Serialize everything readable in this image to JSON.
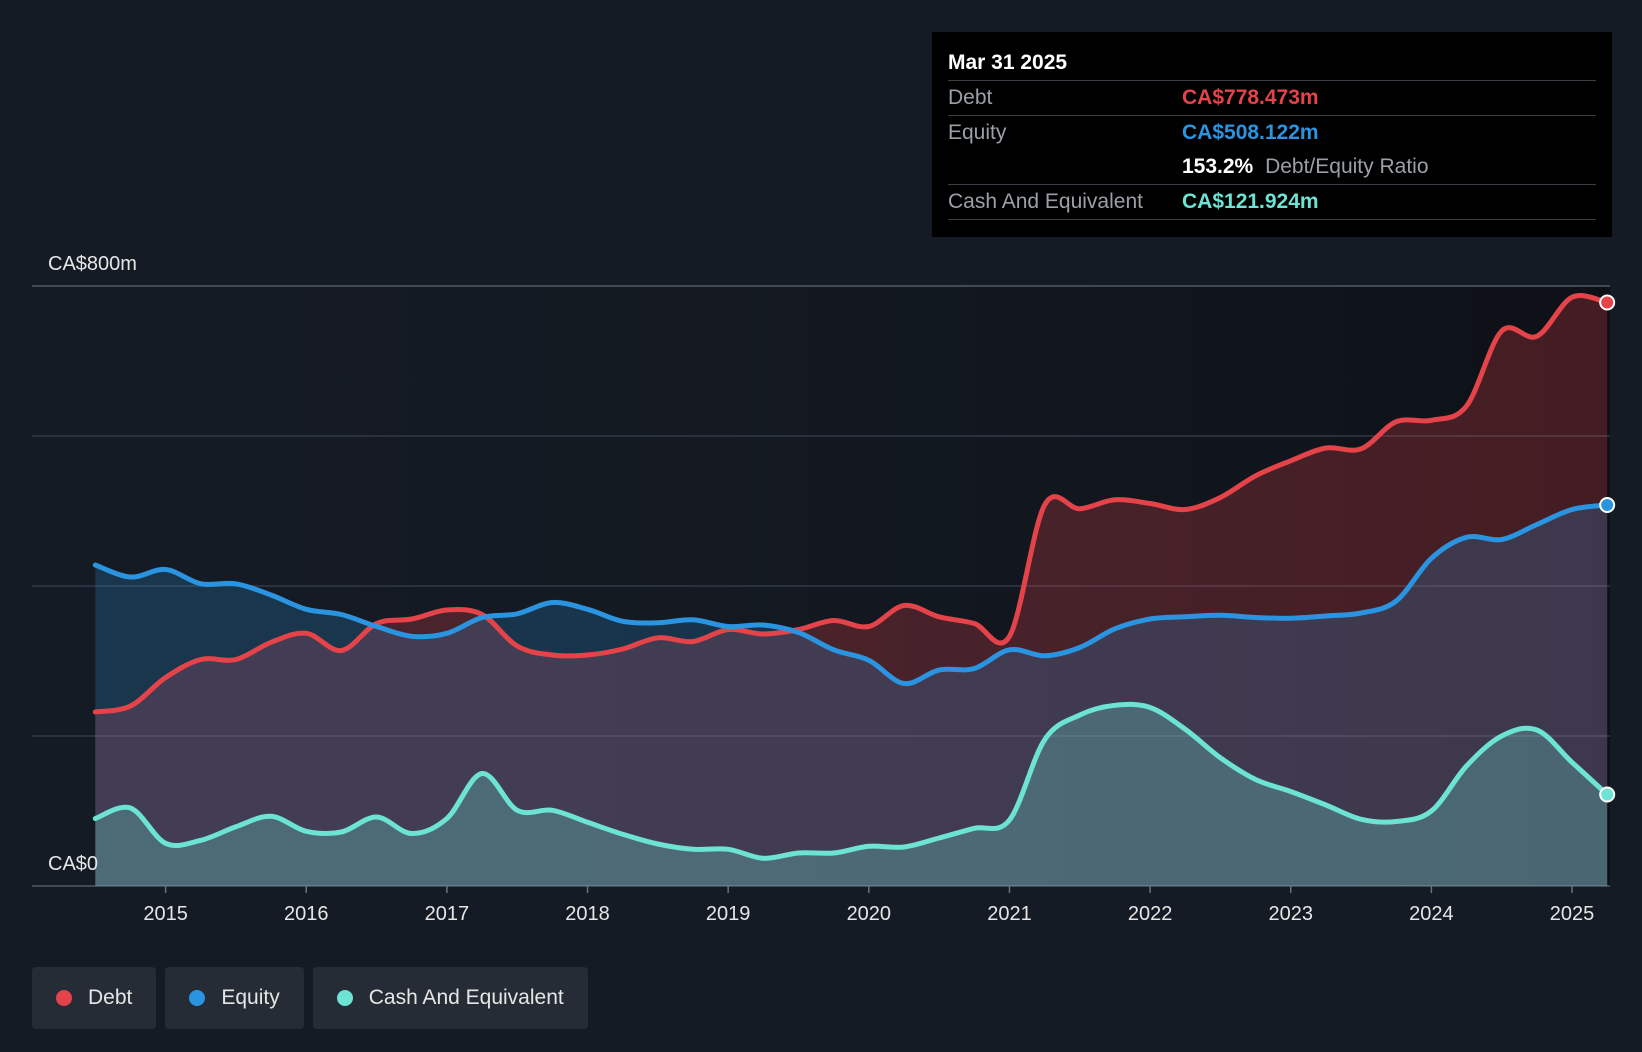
{
  "tooltip": {
    "date": "Mar 31 2025",
    "debt_label": "Debt",
    "debt_value": "CA$778.473m",
    "equity_label": "Equity",
    "equity_value": "CA$508.122m",
    "ratio_value": "153.2%",
    "ratio_label": "Debt/Equity Ratio",
    "cash_label": "Cash And Equivalent",
    "cash_value": "CA$121.924m"
  },
  "legend": [
    {
      "label": "Debt",
      "color": "#e5434a"
    },
    {
      "label": "Equity",
      "color": "#2b94e0"
    },
    {
      "label": "Cash And Equivalent",
      "color": "#6ce3d3"
    }
  ],
  "chart_data": {
    "type": "area",
    "y_top_label": "CA$800m",
    "y_bottom_label": "CA$0",
    "ylim": [
      0,
      800
    ],
    "xlim": [
      2014.05,
      2025.27
    ],
    "gridlines": [
      0,
      200,
      400,
      600,
      800
    ],
    "x_ticks": [
      2015,
      2016,
      2017,
      2018,
      2019,
      2020,
      2021,
      2022,
      2023,
      2024,
      2025
    ],
    "x_tick_labels": [
      "2015",
      "2016",
      "2017",
      "2018",
      "2019",
      "2020",
      "2021",
      "2022",
      "2023",
      "2024",
      "2025"
    ],
    "series": [
      {
        "name": "Debt",
        "color": "#e5434a",
        "points": [
          [
            2014.5,
            232
          ],
          [
            2014.75,
            240
          ],
          [
            2015.0,
            278
          ],
          [
            2015.25,
            302
          ],
          [
            2015.5,
            302
          ],
          [
            2015.75,
            325
          ],
          [
            2016.0,
            337
          ],
          [
            2016.25,
            314
          ],
          [
            2016.5,
            350
          ],
          [
            2016.75,
            356
          ],
          [
            2017.0,
            368
          ],
          [
            2017.25,
            362
          ],
          [
            2017.5,
            320
          ],
          [
            2017.75,
            308
          ],
          [
            2018.0,
            308
          ],
          [
            2018.25,
            316
          ],
          [
            2018.5,
            331
          ],
          [
            2018.75,
            326
          ],
          [
            2019.0,
            342
          ],
          [
            2019.25,
            336
          ],
          [
            2019.5,
            342
          ],
          [
            2019.75,
            354
          ],
          [
            2020.0,
            346
          ],
          [
            2020.25,
            374
          ],
          [
            2020.5,
            359
          ],
          [
            2020.75,
            350
          ],
          [
            2021.0,
            333
          ],
          [
            2021.25,
            508
          ],
          [
            2021.5,
            503
          ],
          [
            2021.75,
            515
          ],
          [
            2022.0,
            510
          ],
          [
            2022.25,
            502
          ],
          [
            2022.5,
            518
          ],
          [
            2022.75,
            547
          ],
          [
            2023.0,
            567
          ],
          [
            2023.25,
            584
          ],
          [
            2023.5,
            583
          ],
          [
            2023.75,
            619
          ],
          [
            2024.0,
            621
          ],
          [
            2024.25,
            640
          ],
          [
            2024.5,
            740
          ],
          [
            2024.75,
            733
          ],
          [
            2025.0,
            785
          ],
          [
            2025.25,
            778
          ]
        ]
      },
      {
        "name": "Equity",
        "color": "#2b94e0",
        "points": [
          [
            2014.5,
            428
          ],
          [
            2014.75,
            412
          ],
          [
            2015.0,
            422
          ],
          [
            2015.25,
            403
          ],
          [
            2015.5,
            403
          ],
          [
            2015.75,
            388
          ],
          [
            2016.0,
            369
          ],
          [
            2016.25,
            362
          ],
          [
            2016.5,
            346
          ],
          [
            2016.75,
            333
          ],
          [
            2017.0,
            337
          ],
          [
            2017.25,
            358
          ],
          [
            2017.5,
            363
          ],
          [
            2017.75,
            378
          ],
          [
            2018.0,
            369
          ],
          [
            2018.25,
            353
          ],
          [
            2018.5,
            351
          ],
          [
            2018.75,
            355
          ],
          [
            2019.0,
            346
          ],
          [
            2019.25,
            348
          ],
          [
            2019.5,
            338
          ],
          [
            2019.75,
            315
          ],
          [
            2020.0,
            301
          ],
          [
            2020.25,
            270
          ],
          [
            2020.5,
            288
          ],
          [
            2020.75,
            290
          ],
          [
            2021.0,
            315
          ],
          [
            2021.25,
            307
          ],
          [
            2021.5,
            318
          ],
          [
            2021.75,
            343
          ],
          [
            2022.0,
            356
          ],
          [
            2022.25,
            359
          ],
          [
            2022.5,
            361
          ],
          [
            2022.75,
            358
          ],
          [
            2023.0,
            357
          ],
          [
            2023.25,
            360
          ],
          [
            2023.5,
            364
          ],
          [
            2023.75,
            380
          ],
          [
            2024.0,
            437
          ],
          [
            2024.25,
            465
          ],
          [
            2024.5,
            462
          ],
          [
            2024.75,
            482
          ],
          [
            2025.0,
            502
          ],
          [
            2025.25,
            508
          ]
        ]
      },
      {
        "name": "Cash And Equivalent",
        "color": "#6ce3d3",
        "points": [
          [
            2014.5,
            90
          ],
          [
            2014.75,
            104
          ],
          [
            2015.0,
            57
          ],
          [
            2015.25,
            61
          ],
          [
            2015.5,
            79
          ],
          [
            2015.75,
            93
          ],
          [
            2016.0,
            73
          ],
          [
            2016.25,
            72
          ],
          [
            2016.5,
            92
          ],
          [
            2016.75,
            70
          ],
          [
            2017.0,
            90
          ],
          [
            2017.25,
            150
          ],
          [
            2017.5,
            101
          ],
          [
            2017.75,
            101
          ],
          [
            2018.0,
            85
          ],
          [
            2018.25,
            69
          ],
          [
            2018.5,
            56
          ],
          [
            2018.75,
            49
          ],
          [
            2019.0,
            49
          ],
          [
            2019.25,
            37
          ],
          [
            2019.5,
            44
          ],
          [
            2019.75,
            44
          ],
          [
            2020.0,
            53
          ],
          [
            2020.25,
            52
          ],
          [
            2020.5,
            64
          ],
          [
            2020.75,
            77
          ],
          [
            2021.0,
            88
          ],
          [
            2021.25,
            195
          ],
          [
            2021.5,
            228
          ],
          [
            2021.75,
            241
          ],
          [
            2022.0,
            238
          ],
          [
            2022.25,
            209
          ],
          [
            2022.5,
            171
          ],
          [
            2022.75,
            142
          ],
          [
            2023.0,
            126
          ],
          [
            2023.25,
            108
          ],
          [
            2023.5,
            89
          ],
          [
            2023.75,
            86
          ],
          [
            2024.0,
            100
          ],
          [
            2024.25,
            160
          ],
          [
            2024.5,
            200
          ],
          [
            2024.75,
            208
          ],
          [
            2025.0,
            165
          ],
          [
            2025.25,
            122
          ]
        ]
      }
    ]
  }
}
